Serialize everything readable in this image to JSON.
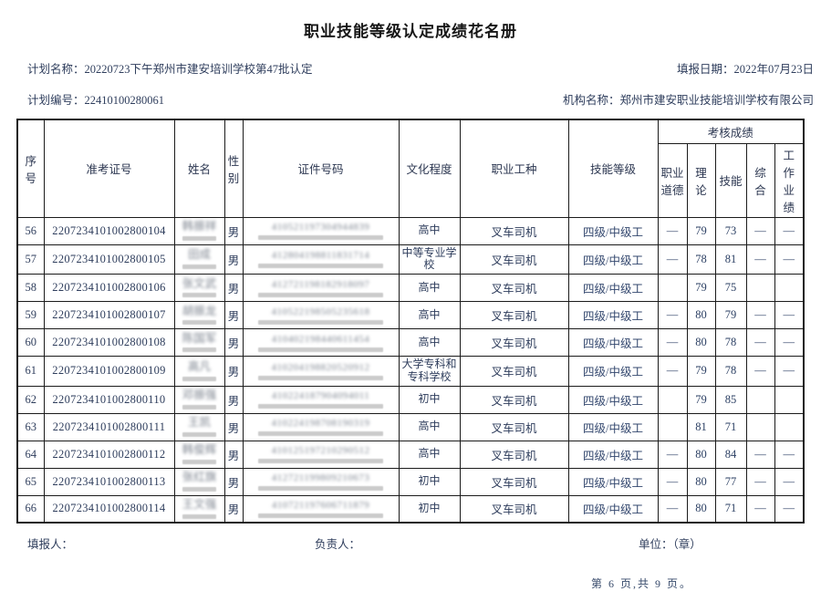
{
  "title": "职业技能等级认定成绩花名册",
  "meta": {
    "plan_name_label": "计划名称：",
    "plan_name": "20220723下午郑州市建安培训学校第47批认定",
    "fill_date_label": "填报日期：",
    "fill_date": "2022年07月23日",
    "plan_no_label": "计划编号：",
    "plan_no": "22410100280061",
    "org_label": "机构名称：",
    "org_name": "郑州市建安职业技能培训学校有限公司"
  },
  "table": {
    "headers": {
      "seq": "序号",
      "ticket": "准考证号",
      "name": "姓名",
      "gender": "性别",
      "id_no": "证件号码",
      "education": "文化程度",
      "occupation": "职业工种",
      "level": "技能等级",
      "score_group": "考核成绩",
      "score_cols": [
        "职业道德",
        "理论",
        "技能",
        "综合",
        "工作业绩"
      ]
    },
    "rows": [
      {
        "seq": "56",
        "ticket": "2207234101002800104",
        "name_blurred": "韩振祥",
        "gender": "男",
        "id_blurred": "410521197304944839",
        "education": "高中",
        "occupation": "叉车司机",
        "level": "四级/中级工",
        "scores": [
          "—",
          "79",
          "73",
          "—",
          "—"
        ]
      },
      {
        "seq": "57",
        "ticket": "2207234101002800105",
        "name_blurred": "田成",
        "gender": "男",
        "id_blurred": "412804198811831714",
        "education": "中等专业学校",
        "occupation": "叉车司机",
        "level": "四级/中级工",
        "scores": [
          "—",
          "78",
          "81",
          "—",
          "—"
        ]
      },
      {
        "seq": "58",
        "ticket": "2207234101002800106",
        "name_blurred": "张文武",
        "gender": "男",
        "id_blurred": "412721198182918097",
        "education": "高中",
        "occupation": "叉车司机",
        "level": "四级/中级工",
        "scores": [
          "",
          "79",
          "75",
          "",
          ""
        ]
      },
      {
        "seq": "59",
        "ticket": "2207234101002800107",
        "name_blurred": "胡振龙",
        "gender": "男",
        "id_blurred": "410522198505235618",
        "education": "高中",
        "occupation": "叉车司机",
        "level": "四级/中级工",
        "scores": [
          "—",
          "80",
          "79",
          "—",
          "—"
        ]
      },
      {
        "seq": "60",
        "ticket": "2207234101002800108",
        "name_blurred": "陈国军",
        "gender": "男",
        "id_blurred": "410402198440611454",
        "education": "高中",
        "occupation": "叉车司机",
        "level": "四级/中级工",
        "scores": [
          "—",
          "80",
          "78",
          "—",
          "—"
        ]
      },
      {
        "seq": "61",
        "ticket": "2207234101002800109",
        "name_blurred": "高凡",
        "gender": "男",
        "id_blurred": "410204198820520912",
        "education": "大学专科和专科学校",
        "occupation": "叉车司机",
        "level": "四级/中级工",
        "scores": [
          "—",
          "79",
          "78",
          "—",
          "—"
        ]
      },
      {
        "seq": "62",
        "ticket": "2207234101002800110",
        "name_blurred": "邓振强",
        "gender": "男",
        "id_blurred": "410224187904094011",
        "education": "初中",
        "occupation": "叉车司机",
        "level": "四级/中级工",
        "scores": [
          "",
          "79",
          "85",
          "",
          ""
        ]
      },
      {
        "seq": "63",
        "ticket": "2207234101002800111",
        "name_blurred": "王凯",
        "gender": "男",
        "id_blurred": "410224198708190319",
        "education": "高中",
        "occupation": "叉车司机",
        "level": "四级/中级工",
        "scores": [
          "",
          "81",
          "71",
          "",
          ""
        ]
      },
      {
        "seq": "64",
        "ticket": "2207234101002800112",
        "name_blurred": "韩俊辉",
        "gender": "男",
        "id_blurred": "410125197210290512",
        "education": "高中",
        "occupation": "叉车司机",
        "level": "四级/中级工",
        "scores": [
          "—",
          "80",
          "84",
          "—",
          "—"
        ]
      },
      {
        "seq": "65",
        "ticket": "2207234101002800113",
        "name_blurred": "张红旗",
        "gender": "男",
        "id_blurred": "412721199809210673",
        "education": "初中",
        "occupation": "叉车司机",
        "level": "四级/中级工",
        "scores": [
          "—",
          "80",
          "77",
          "—",
          "—"
        ]
      },
      {
        "seq": "66",
        "ticket": "2207234101002800114",
        "name_blurred": "王文强",
        "gender": "男",
        "id_blurred": "410721197606711879",
        "education": "初中",
        "occupation": "叉车司机",
        "level": "四级/中级工",
        "scores": [
          "—",
          "80",
          "71",
          "—",
          "—"
        ]
      }
    ]
  },
  "footer": {
    "filler_label": "填报人：",
    "manager_label": "负责人：",
    "unit_label": "单位：",
    "unit_value": "（章）",
    "page_info": "第 6 页,共 9 页。"
  }
}
